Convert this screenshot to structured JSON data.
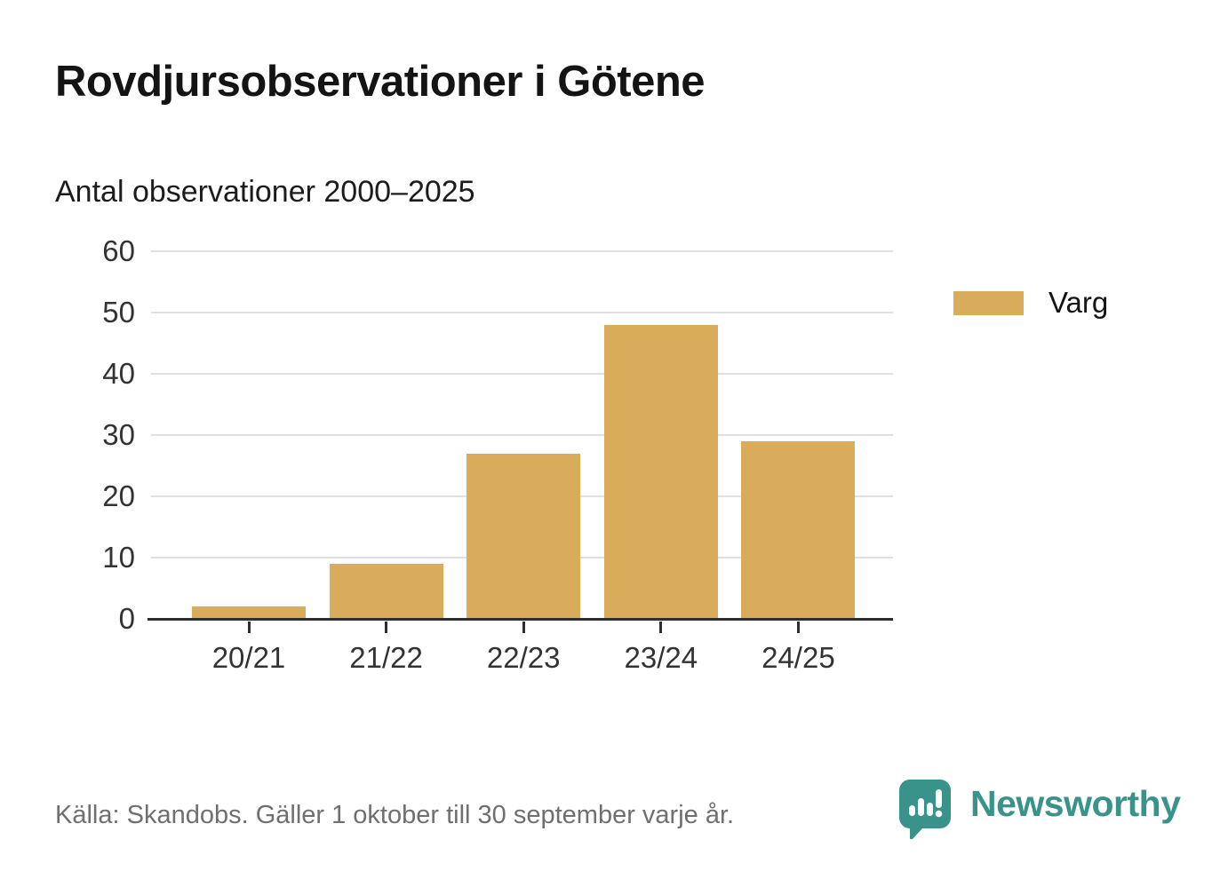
{
  "header": {
    "title": "Rovdjursobservationer i Götene",
    "subtitle": "Antal observationer 2000–2025"
  },
  "chart_data": {
    "type": "bar",
    "categories": [
      "20/21",
      "21/22",
      "22/23",
      "23/24",
      "24/25"
    ],
    "series": [
      {
        "name": "Varg",
        "color": "#d9ac5c",
        "values": [
          2,
          9,
          27,
          48,
          29
        ]
      }
    ],
    "title": "Rovdjursobservationer i Götene",
    "subtitle": "Antal observationer 2000–2025",
    "xlabel": "",
    "ylabel": "",
    "ylim": [
      0,
      60
    ],
    "yticks": [
      0,
      10,
      20,
      30,
      40,
      50,
      60
    ],
    "grid": true,
    "legend_position": "right"
  },
  "legend": {
    "items": [
      {
        "label": "Varg",
        "color": "#d9ac5c"
      }
    ]
  },
  "footer": {
    "source": "Källa: Skandobs. Gäller 1 oktober till 30 september varje år.",
    "brand": "Newsworthy"
  },
  "colors": {
    "bar": "#d9ac5c",
    "brand_teal": "#39938a",
    "gridline": "#e0e0e0",
    "axis": "#2e2e2e",
    "text_dark": "#141414",
    "text_axis": "#333333",
    "text_source": "#6f6f6f"
  },
  "icons": {
    "brand_logo": "newsworthy-speech-bubble-chart-icon"
  }
}
